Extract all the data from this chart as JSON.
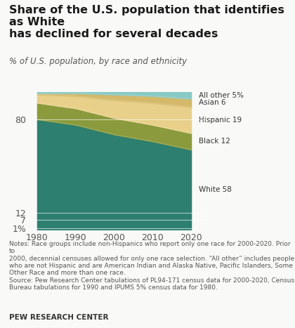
{
  "title": "Share of the U.S. population that identifies as White\nhas declined for several decades",
  "subtitle": "% of U.S. population, by race and ethnicity",
  "years": [
    1980,
    1990,
    2000,
    2010,
    2020
  ],
  "white": [
    80,
    76,
    69,
    64,
    58
  ],
  "black": [
    12,
    12,
    12,
    12,
    12
  ],
  "hispanic": [
    6,
    9,
    13,
    16,
    19
  ],
  "asian": [
    1,
    2,
    4,
    5,
    6
  ],
  "allother": [
    1,
    1,
    2,
    3,
    5
  ],
  "colors": {
    "white": "#2d7f6f",
    "black": "#8a9a3c",
    "hispanic": "#e8d08a",
    "asian": "#d4b96a",
    "allother": "#88c9c4"
  },
  "labels": {
    "white": "White 58",
    "black": "Black 12",
    "hispanic": "Hispanic 19",
    "asian": "Asian 6",
    "allother": "All other 5%"
  },
  "yticks": [
    1,
    7,
    12,
    80
  ],
  "ylim": [
    0,
    100
  ],
  "xlim": [
    1978,
    2024
  ],
  "xticks": [
    1980,
    1990,
    2000,
    2010,
    2020
  ],
  "notes": "Notes: Race groups include non-Hispanics who report only one race for 2000-2020. Prior to\n2000, decennial censuses allowed for only one race selection. “All other” includes people\nwho are not Hispanic and are American Indian and Alaska Native, Pacific Islanders, Some\nOther Race and more than one race.\nSource: Pew Research Center tabulations of PL94-171 census data for 2000-2020, Census\nBureau tabulations for 1990 and IPUMS 5% census data for 1980.",
  "footer": "PEW RESEARCH CENTER",
  "bg_color": "#f9f9f7"
}
